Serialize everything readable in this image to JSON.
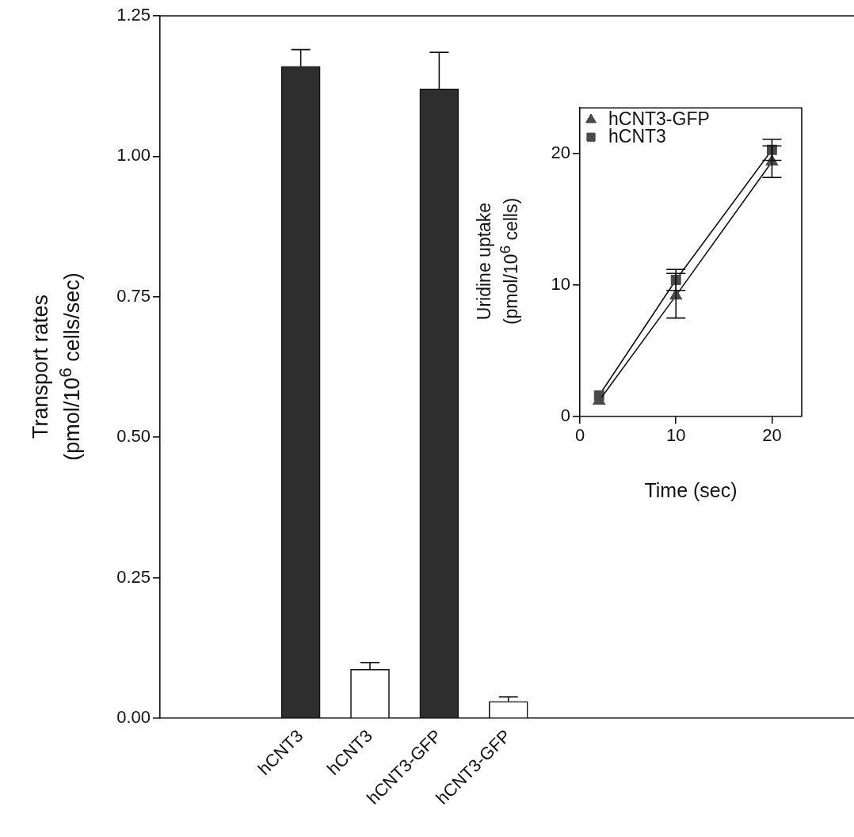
{
  "chart_data": [
    {
      "type": "bar",
      "ylabel": "Transport rates (pmol/10$^{6}$ cells/sec)",
      "categories": [
        "hCNT3",
        "hCNT3",
        "hCNT3-GFP",
        "hCNT3-GFP"
      ],
      "values": [
        1.16,
        0.087,
        1.12,
        0.03
      ],
      "errors": [
        0.03,
        0.012,
        0.065,
        0.008
      ],
      "colors": [
        "#2e2e2e",
        "#ffffff",
        "#2e2e2e",
        "#ffffff"
      ],
      "ylim": [
        0,
        1.25
      ],
      "yticks": [
        {
          "value": 0,
          "label": "0.00"
        },
        {
          "value": 0.25,
          "label": "0.25"
        },
        {
          "value": 0.5,
          "label": "0.50"
        },
        {
          "value": 0.75,
          "label": "0.75"
        },
        {
          "value": 1,
          "label": "1.00"
        },
        {
          "value": 1.25,
          "label": "1.25"
        }
      ],
      "grid": false
    },
    {
      "type": "line",
      "xlabel": "Time (sec)",
      "ylabel": "Uridine uptake (pmol/10$^{6}$ cells)",
      "x": [
        2,
        10,
        20
      ],
      "series": [
        {
          "name": "hCNT3-GFP",
          "color": "#4a4a4a",
          "marker": "triangle",
          "values": [
            1.2,
            9.2,
            19.4
          ],
          "errors": [
            null,
            1.7,
            1.2
          ]
        },
        {
          "name": "hCNT3",
          "color": "#4a4a4a",
          "marker": "square",
          "values": [
            1.6,
            10.4,
            20.3
          ],
          "errors": [
            null,
            0.8,
            0.8
          ]
        }
      ],
      "xlim": [
        0,
        23.1
      ],
      "xticks": [
        0,
        10,
        20
      ],
      "ylim": [
        0,
        23.5
      ],
      "yticks": [
        0,
        10,
        20
      ],
      "legend": "top left",
      "grid": false
    }
  ]
}
